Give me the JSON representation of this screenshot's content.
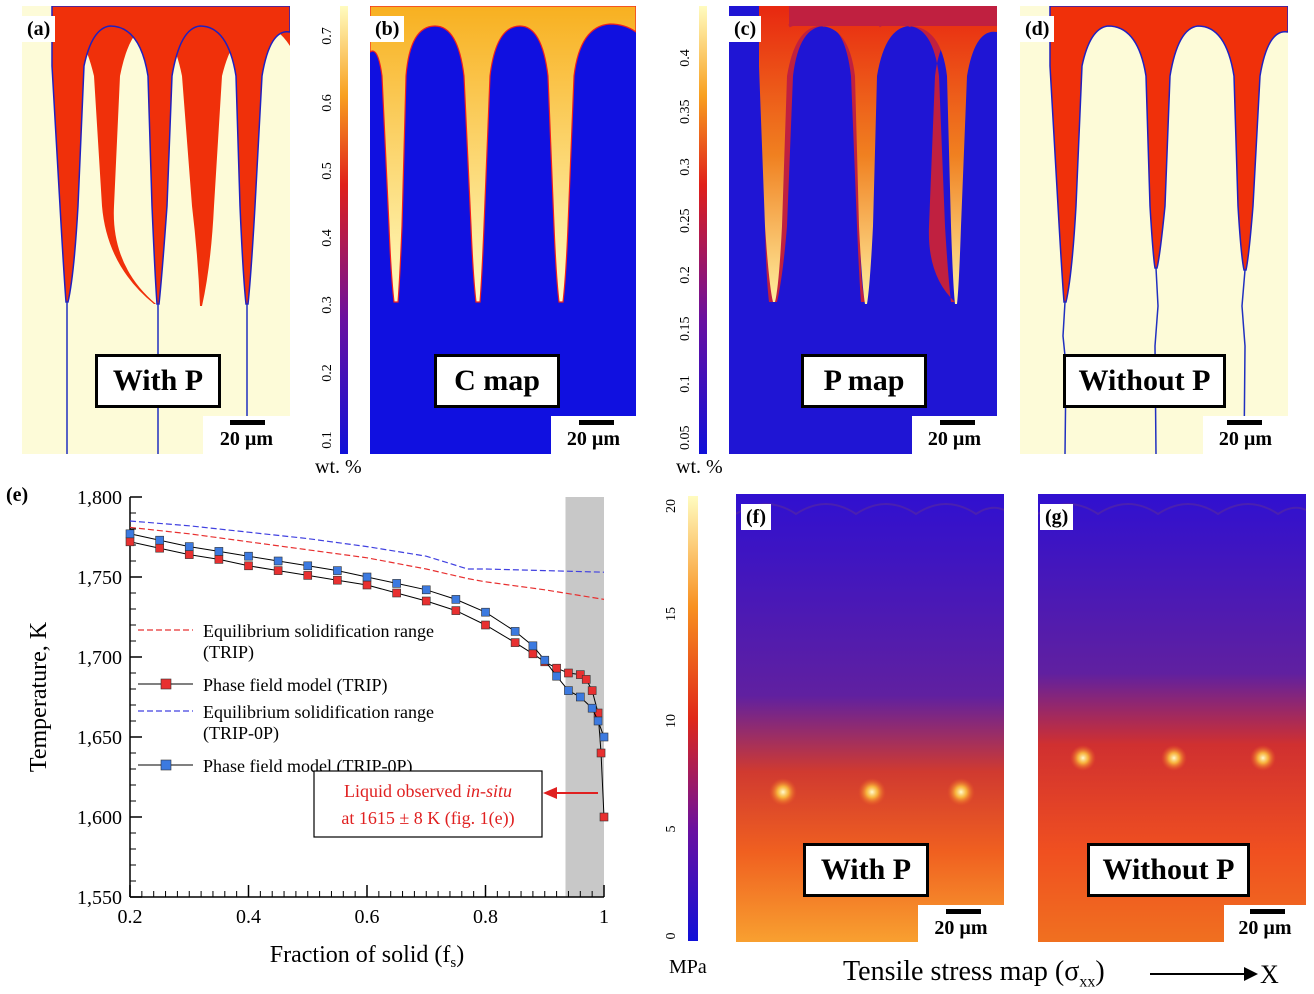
{
  "panels": {
    "a": {
      "label": "(a)",
      "box": "With P",
      "scale": "20 µm"
    },
    "b": {
      "label": "(b)",
      "box": "C map",
      "scale": "20 µm"
    },
    "c": {
      "label": "(c)",
      "box": "P map",
      "scale": "20 µm"
    },
    "d": {
      "label": "(d)",
      "box": "Without P",
      "scale": "20 µm"
    },
    "f": {
      "label": "(f)",
      "box": "With P",
      "scale": "20 µm"
    },
    "g": {
      "label": "(g)",
      "box": "Without P",
      "scale": "20 µm"
    }
  },
  "colorbars": {
    "c_map": {
      "ticks": [
        "0.7",
        "0.6",
        "0.5",
        "0.4",
        "0.3",
        "0.2",
        "0.1"
      ],
      "unit": "wt. %"
    },
    "p_map": {
      "ticks": [
        "0.4",
        "0.35",
        "0.3",
        "0.25",
        "0.2",
        "0.15",
        "0.1",
        "0.05"
      ],
      "unit": "wt. %"
    },
    "stress": {
      "ticks": [
        "20",
        "15",
        "10",
        "5",
        "0"
      ],
      "unit": "MPa"
    }
  },
  "stress_caption": "Tensile stress map (σ",
  "stress_caption_sub": "xx",
  "stress_caption_end": ")",
  "stress_axis": "X",
  "colors": {
    "liquid_red": "#f0300a",
    "solid_cream": "#fdfbd8",
    "map_blue": "#1010e0",
    "gray_band": "#c8c8c8"
  },
  "chart_data": {
    "type": "line",
    "panel_label": "(e)",
    "xlabel": "Fraction of solid (f",
    "xlabel_sub": "s",
    "xlabel_end": ")",
    "ylabel": "Temperature, K",
    "xlim": [
      0.2,
      1.0
    ],
    "ylim": [
      1550,
      1800
    ],
    "xticks": [
      "0.2",
      "0.4",
      "0.6",
      "0.8",
      "1"
    ],
    "yticks": [
      "1,550",
      "1,600",
      "1,650",
      "1,700",
      "1,750",
      "1,800"
    ],
    "shaded_band": [
      0.935,
      1.0
    ],
    "series": [
      {
        "name": "Equilibrium solidification range (TRIP)",
        "style": "dashed",
        "color": "#e83030",
        "x": [
          0.2,
          0.3,
          0.4,
          0.5,
          0.6,
          0.7,
          0.77,
          0.8,
          0.9,
          1.0
        ],
        "y": [
          1781,
          1777,
          1772,
          1767,
          1762,
          1755,
          1749,
          1747,
          1742,
          1736
        ]
      },
      {
        "name": "Phase field model (TRIP)",
        "style": "markers",
        "color": "#e83030",
        "x": [
          0.2,
          0.25,
          0.3,
          0.35,
          0.4,
          0.45,
          0.5,
          0.55,
          0.6,
          0.65,
          0.7,
          0.75,
          0.8,
          0.85,
          0.88,
          0.9,
          0.92,
          0.94,
          0.96,
          0.97,
          0.98,
          0.99,
          0.995,
          1.0
        ],
        "y": [
          1772,
          1768,
          1764,
          1761,
          1757,
          1754,
          1751,
          1748,
          1745,
          1740,
          1735,
          1729,
          1720,
          1709,
          1702,
          1697,
          1693,
          1690,
          1689,
          1686,
          1679,
          1665,
          1640,
          1600
        ]
      },
      {
        "name": "Equilibrium solidification range (TRIP-0P)",
        "style": "dashed",
        "color": "#4040e0",
        "x": [
          0.2,
          0.3,
          0.4,
          0.5,
          0.6,
          0.7,
          0.77,
          0.8,
          0.9,
          1.0
        ],
        "y": [
          1785,
          1782,
          1778,
          1774,
          1769,
          1763,
          1755,
          1755,
          1754,
          1753
        ]
      },
      {
        "name": "Phase field model (TRIP-0P)",
        "style": "markers",
        "color": "#3c7ae0",
        "x": [
          0.2,
          0.25,
          0.3,
          0.35,
          0.4,
          0.45,
          0.5,
          0.55,
          0.6,
          0.65,
          0.7,
          0.75,
          0.8,
          0.85,
          0.88,
          0.9,
          0.92,
          0.94,
          0.96,
          0.98,
          0.99,
          1.0
        ],
        "y": [
          1777,
          1773,
          1769,
          1766,
          1763,
          1760,
          1757,
          1754,
          1750,
          1746,
          1742,
          1736,
          1728,
          1716,
          1707,
          1698,
          1688,
          1679,
          1675,
          1668,
          1660,
          1650
        ]
      }
    ],
    "legend": [
      {
        "line1": "Equilibrium solidification range",
        "line2": "(TRIP)"
      },
      {
        "line1": "Phase field model (TRIP)",
        "line2": ""
      },
      {
        "line1": "Equilibrium solidification range",
        "line2": "(TRIP-0P)"
      },
      {
        "line1": "Phase field model (TRIP-0P)",
        "line2": ""
      }
    ],
    "annotation": {
      "line1_a": "Liquid observed ",
      "line1_b": "in-situ",
      "line2": "at 1615 ± 8 K (fig. 1(e))",
      "x": 1.0,
      "y": 1615
    }
  }
}
